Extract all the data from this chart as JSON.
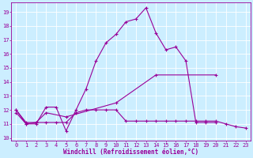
{
  "xlabel": "Windchill (Refroidissement éolien,°C)",
  "bg_color": "#cceeff",
  "grid_color": "#ffffff",
  "line_color": "#990099",
  "xlim": [
    -0.5,
    23.5
  ],
  "ylim": [
    9.8,
    19.7
  ],
  "yticks": [
    10,
    11,
    12,
    13,
    14,
    15,
    16,
    17,
    18,
    19
  ],
  "xticks": [
    0,
    1,
    2,
    3,
    4,
    5,
    6,
    7,
    8,
    9,
    10,
    11,
    12,
    13,
    14,
    15,
    16,
    17,
    18,
    19,
    20,
    21,
    22,
    23
  ],
  "series1_x": [
    0,
    1,
    2,
    3,
    4,
    5,
    6,
    7,
    8,
    9,
    10,
    11,
    12,
    13,
    14,
    15,
    16,
    17,
    18,
    19,
    20
  ],
  "series1_y": [
    12.0,
    11.0,
    11.0,
    12.2,
    12.2,
    10.5,
    12.0,
    13.5,
    15.5,
    16.8,
    17.4,
    18.3,
    18.5,
    19.3,
    17.5,
    16.3,
    16.5,
    15.5,
    11.1,
    11.1,
    11.1
  ],
  "series2_x": [
    0,
    1,
    2,
    3,
    4,
    5,
    6,
    7,
    8,
    9,
    10,
    11,
    12,
    13,
    14,
    15,
    16,
    17,
    18,
    19,
    20,
    21,
    22,
    23
  ],
  "series2_y": [
    11.8,
    11.0,
    11.1,
    11.1,
    11.1,
    11.1,
    11.8,
    12.0,
    12.0,
    12.0,
    12.0,
    11.2,
    11.2,
    11.2,
    11.2,
    11.2,
    11.2,
    11.2,
    11.2,
    11.2,
    11.2,
    11.0,
    10.8,
    10.7
  ],
  "series3_x": [
    0,
    1,
    2,
    3,
    5,
    10,
    14,
    20
  ],
  "series3_y": [
    12.0,
    11.1,
    11.1,
    11.8,
    11.5,
    12.5,
    14.5,
    14.5
  ],
  "markersize": 3,
  "linewidth": 0.8,
  "tick_fontsize": 5,
  "xlabel_fontsize": 5.5
}
